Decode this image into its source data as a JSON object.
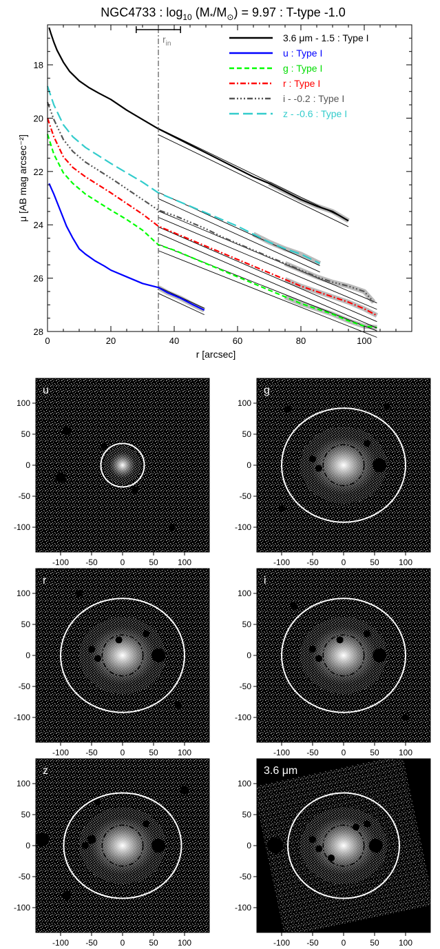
{
  "title": {
    "prefix": "NGC4733 : log",
    "sub": "10",
    "mid": " (M",
    "star": "*",
    "slash": "/M",
    "sun": "⊙",
    "suffix": ") = 9.97 : T-type -1.0"
  },
  "chart_data": [
    {
      "type": "line",
      "xlabel": "r [arcsec]",
      "ylabel": "μ [AB mag arcsec⁻²]",
      "xlim": [
        0,
        115
      ],
      "ylim": [
        28,
        16.5
      ],
      "y_inverted": true,
      "x_ticks": [
        0,
        20,
        40,
        60,
        80,
        100
      ],
      "y_ticks": [
        18,
        20,
        22,
        24,
        26,
        28
      ],
      "r_in": {
        "label": "r",
        "sub": "in",
        "value": 35,
        "err": [
          28,
          42
        ]
      },
      "legend": [
        {
          "label": "3.6 μm - 1.5 : Type I",
          "color": "#000000",
          "dash": "",
          "text_color": "#000000"
        },
        {
          "label": "u : Type I",
          "color": "#0000ff",
          "dash": "",
          "text_color": "#0000ff"
        },
        {
          "label": "g : Type I",
          "color": "#00ff00",
          "dash": "7,4",
          "text_color": "#00dd00"
        },
        {
          "label": "r : Type I",
          "color": "#ff0000",
          "dash": "8,3,2,3",
          "text_color": "#ff0000"
        },
        {
          "label": "i - -0.2 : Type I",
          "color": "#555555",
          "dash": "8,3,2,3,2,3,2,3",
          "text_color": "#555555"
        },
        {
          "label": "z - -0.6 : Type I",
          "color": "#33cccc",
          "dash": "14,6",
          "text_color": "#33cccc"
        }
      ],
      "series": [
        {
          "name": "3.6 μm - 1.5 : Type I",
          "color": "#000000",
          "dash": "",
          "x": [
            0.5,
            1,
            2,
            3,
            5,
            7,
            10,
            13,
            16,
            20,
            25,
            30,
            35,
            40,
            45,
            50,
            55,
            60,
            65,
            70,
            75,
            80,
            85,
            90,
            95
          ],
          "y": [
            16.6,
            16.8,
            17.15,
            17.45,
            17.9,
            18.25,
            18.6,
            18.85,
            19.05,
            19.3,
            19.7,
            20.05,
            20.4,
            20.7,
            21.0,
            21.3,
            21.6,
            21.9,
            22.2,
            22.45,
            22.75,
            23.05,
            23.3,
            23.5,
            23.85
          ],
          "fit": {
            "x": [
              35,
              95
            ],
            "y": [
              20.5,
              23.95
            ]
          }
        },
        {
          "name": "u : Type I",
          "color": "#0000ff",
          "dash": "",
          "x": [
            0.5,
            2,
            4,
            6,
            8,
            10,
            12,
            15,
            18,
            20,
            25,
            30,
            35,
            38,
            42,
            46,
            49.5
          ],
          "y": [
            22.45,
            22.85,
            23.45,
            24.05,
            24.5,
            24.9,
            25.1,
            25.35,
            25.55,
            25.7,
            25.95,
            26.2,
            26.35,
            26.55,
            26.75,
            27.0,
            27.2
          ],
          "fit": {
            "x": [
              35,
              49.5
            ],
            "y": [
              26.45,
              27.25
            ]
          }
        },
        {
          "name": "g : Type I",
          "color": "#00ff00",
          "dash": "7,4",
          "x": [
            0,
            2,
            5,
            8,
            12,
            16,
            20,
            25,
            30,
            35,
            40,
            45,
            50,
            55,
            60,
            65,
            70,
            75,
            80,
            85,
            90,
            95,
            100,
            104
          ],
          "y": [
            20.6,
            21.35,
            22.05,
            22.45,
            22.85,
            23.15,
            23.45,
            23.8,
            24.2,
            24.75,
            24.95,
            25.2,
            25.45,
            25.7,
            25.95,
            26.2,
            26.45,
            26.7,
            26.95,
            27.15,
            27.35,
            27.6,
            27.8,
            27.85
          ],
          "fit": {
            "x": [
              35,
              104
            ],
            "y": [
              24.85,
              28.1
            ]
          }
        },
        {
          "name": "r : Type I",
          "color": "#ff0000",
          "dash": "8,3,2,3",
          "x": [
            0,
            2,
            5,
            8,
            12,
            16,
            20,
            25,
            30,
            35,
            40,
            45,
            50,
            55,
            60,
            65,
            70,
            75,
            80,
            85,
            90,
            95,
            100,
            104
          ],
          "y": [
            20.0,
            20.7,
            21.45,
            21.85,
            22.2,
            22.5,
            22.8,
            23.2,
            23.6,
            24.05,
            24.3,
            24.55,
            24.8,
            25.05,
            25.3,
            25.55,
            25.8,
            26.05,
            26.3,
            26.5,
            26.7,
            26.9,
            27.15,
            27.4
          ],
          "fit": {
            "x": [
              35,
              104
            ],
            "y": [
              24.2,
              27.75
            ]
          }
        },
        {
          "name": "i - -0.2 : Type I",
          "color": "#555555",
          "dash": "8,3,2,3,2,3,2,3",
          "x": [
            0,
            2,
            5,
            8,
            12,
            16,
            20,
            25,
            30,
            35,
            40,
            45,
            50,
            55,
            60,
            65,
            70,
            75,
            80,
            85,
            90,
            95,
            100,
            103
          ],
          "y": [
            19.4,
            20.05,
            20.8,
            21.25,
            21.65,
            21.95,
            22.25,
            22.65,
            23.05,
            23.45,
            23.65,
            23.9,
            24.15,
            24.45,
            24.7,
            24.95,
            25.2,
            25.45,
            25.7,
            25.95,
            26.15,
            26.3,
            26.5,
            26.9
          ],
          "fit": {
            "x": [
              35,
              104
            ],
            "y": [
              23.6,
              27.05
            ]
          }
        },
        {
          "name": "z - -0.6 : Type I",
          "color": "#33cccc",
          "dash": "14,6",
          "x": [
            0,
            2,
            5,
            8,
            12,
            16,
            20,
            25,
            30,
            35,
            40,
            45,
            50,
            55,
            60,
            65,
            70,
            75,
            80,
            86
          ],
          "y": [
            18.8,
            19.5,
            20.25,
            20.7,
            21.1,
            21.4,
            21.7,
            22.05,
            22.4,
            22.8,
            23.05,
            23.3,
            23.55,
            23.8,
            24.05,
            24.35,
            24.65,
            24.9,
            25.1,
            25.45
          ],
          "fit": {
            "x": [
              35,
              86
            ],
            "y": [
              22.9,
              25.65
            ]
          }
        }
      ]
    },
    {
      "type": "image",
      "xlim": [
        -140,
        140
      ],
      "ylim": [
        -140,
        140
      ],
      "x_ticks": [
        -100,
        -50,
        0,
        50,
        100
      ],
      "y_ticks": [
        -100,
        -50,
        0,
        50,
        100
      ],
      "panels": [
        {
          "label": "u",
          "outer_rx": 35,
          "outer_ry": 35,
          "inner_rx": 0,
          "inner_ry": 0,
          "rotated_footprint": false,
          "masks": [
            [
              -90,
              55,
              5
            ],
            [
              -100,
              -20,
              6
            ],
            [
              -30,
              30,
              4
            ],
            [
              20,
              -40,
              4
            ],
            [
              80,
              -100,
              4
            ]
          ]
        },
        {
          "label": "g",
          "outer_rx": 100,
          "outer_ry": 92,
          "inner_rx": 33,
          "inner_ry": 33,
          "rotated_footprint": false,
          "masks": [
            [
              -50,
              10,
              4
            ],
            [
              -40,
              -5,
              4
            ],
            [
              38,
              35,
              4
            ],
            [
              58,
              0,
              8
            ],
            [
              -100,
              -70,
              4
            ],
            [
              70,
              95,
              4
            ],
            [
              -90,
              90,
              4
            ]
          ]
        },
        {
          "label": "r",
          "outer_rx": 100,
          "outer_ry": 92,
          "inner_rx": 33,
          "inner_ry": 33,
          "rotated_footprint": false,
          "masks": [
            [
              -50,
              10,
              4
            ],
            [
              -40,
              -5,
              4
            ],
            [
              38,
              35,
              4
            ],
            [
              58,
              0,
              8
            ],
            [
              -6,
              25,
              4
            ],
            [
              -70,
              100,
              4
            ],
            [
              90,
              -80,
              4
            ]
          ]
        },
        {
          "label": "i",
          "outer_rx": 100,
          "outer_ry": 92,
          "inner_rx": 33,
          "inner_ry": 33,
          "rotated_footprint": false,
          "masks": [
            [
              -50,
              10,
              4
            ],
            [
              -40,
              -5,
              4
            ],
            [
              38,
              35,
              4
            ],
            [
              58,
              0,
              8
            ],
            [
              -6,
              25,
              4
            ],
            [
              -80,
              80,
              4
            ],
            [
              100,
              -100,
              4
            ]
          ]
        },
        {
          "label": "z",
          "outer_rx": 95,
          "outer_ry": 85,
          "inner_rx": 33,
          "inner_ry": 33,
          "rotated_footprint": false,
          "masks": [
            [
              -50,
              10,
              5
            ],
            [
              -60,
              0,
              4
            ],
            [
              38,
              35,
              4
            ],
            [
              58,
              0,
              8
            ],
            [
              -130,
              10,
              8
            ],
            [
              -90,
              -80,
              5
            ],
            [
              100,
              90,
              5
            ],
            [
              -40,
              70,
              4
            ]
          ]
        },
        {
          "label": "3.6 μm",
          "outer_rx": 90,
          "outer_ry": 85,
          "inner_rx": 33,
          "inner_ry": 33,
          "rotated_footprint": true,
          "masks": [
            [
              -50,
              10,
              4
            ],
            [
              -40,
              -5,
              4
            ],
            [
              38,
              35,
              4
            ],
            [
              52,
              0,
              8
            ],
            [
              -110,
              0,
              9
            ],
            [
              -20,
              -20,
              4
            ],
            [
              20,
              30,
              4
            ]
          ]
        }
      ]
    }
  ]
}
